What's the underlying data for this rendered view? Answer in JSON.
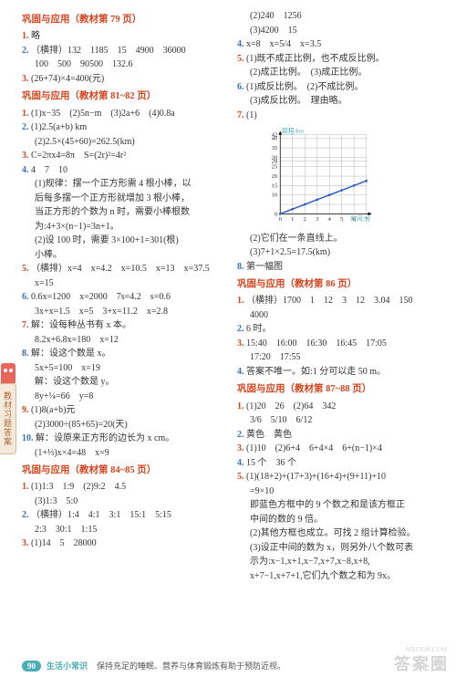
{
  "side_tab": "教材习题答案",
  "footer": {
    "page": "90",
    "label": "生活小常识",
    "note": "保持充足的睡眠、营养与体育锻炼有助于预防近视。"
  },
  "watermark": {
    "small": "答案圈",
    "sub": "MXUE88.COM"
  },
  "left": {
    "s1_title": "巩固与应用（教材第 79 页）",
    "s1_l1": "略",
    "s1_l2": "（横排）132　1185　15　4900　36000",
    "s1_l2b": "100　500　90500　132.6",
    "s1_l3": "(26+74)×4=400(元)",
    "s2_title": "巩固与应用（教材第 81~82 页）",
    "s2_l1": "(1)x−35　(2)5n−m　(3)2a+6　(4)0.8a",
    "s2_l2": "(1)2.5(a+b) km",
    "s2_l2b": "(2)2.5×(45+60)=262.5(km)",
    "s2_l3": "C=2πx4=8π　S=(2r)²=4r²",
    "s2_l4": "4　7　10",
    "s2_l4b1": "(1)规律：摆一个正方形需 4 根小棒，以",
    "s2_l4b2": "后每多摆一个正方形就增加 3 根小棒，",
    "s2_l4b3": "当正方形的个数为 n 时，需要小棒根数",
    "s2_l4b4": "为:4+3×(n−1)=3n+1。",
    "s2_l4b5": "(2)设 100 时，需要 3×100+1=301(根)",
    "s2_l4b6": "小棒。",
    "s2_l5": "（横排）x=4　x=4.2　x=10.5　x=13　x=37.5",
    "s2_l5b": "x=15",
    "s2_l6": "0.6x=1200　x=2000　7s=4.2　s=0.6",
    "s2_l6b": "3x+x=1.5　x=5　3+x=11.2　x=2.8",
    "s2_l7": "解：设每种丛书有 x 本。",
    "s2_l7b": "8.2x+6.8x=180　x=12",
    "s2_l8": "解：设这个数是 x。",
    "s2_l8b": "5x+5=100　x=19",
    "s2_l8c": "解：设这个数是 y。",
    "s2_l8d": "8y+¼=66　y=8",
    "s2_l9": "(1)8(a+b)元",
    "s2_l9b": "(2)3000÷(85+65)=20(天)",
    "s2_l10": "解：设原来正方形的边长为 x cm。",
    "s2_l10b": "(1+⅓)x×4=48　x=9",
    "s3_title": "巩固与应用（教材第 84~85 页）",
    "s3_l1": "(1)1:3　1:9　(2)9:2　4.5",
    "s3_l1b": "(3)1:3　5:0",
    "s3_l2": "（横排）1:4　4:1　3:1　15:1　5:15",
    "s3_l2b": "2:3　30:1　1:15",
    "s3_l3": "(1)14　5　28000"
  },
  "right": {
    "r_l1": "(2)240　1256",
    "r_l2": "(3)4200　15",
    "r_l4": "x=8　x=5/4　x=3.5",
    "r_l5": "(1)既不成正比例，也不成反比例。",
    "r_l5b": "(2)成正比例。　(3)成正比例。",
    "r_l6": "(1)成反比例。　(2)不成比例。",
    "r_l6b": "(3)成反比例。　理由略。",
    "r_l7a": "(1)",
    "r_l7b": "(2)它们在一条直线上。",
    "r_l7c": "(3)7+1×2.5=17.5(km)",
    "r_l8": "第一幅图",
    "s4_title": "巩固与应用（教材第 86 页）",
    "s4_l1": "（横排）1700　1　12　3　12　3.04　150",
    "s4_l1b": "4000",
    "s4_l2": "6 时。",
    "s4_l3": "15:40　16:00　16:30　16:45　17:05",
    "s4_l3b": "17:20　17:55",
    "s4_l4": "答案不唯一。如:1 分可以走 50 m。",
    "s5_title": "巩固与应用（教材第 87~88 页）",
    "s5_l1": "(1)20　26　(2)64　342",
    "s5_l2": "3/6　5/10　6/12",
    "s5_l3": "黄色　黄色",
    "s5_l4": "(1)10　(2)6+4　6+4×4　6+(n−1)×4",
    "s5_l5": "15 个　36 个",
    "s5_l6a": "(1)(18+2)+(17+3)+(16+4)+(9+11)+10",
    "s5_l6b": "=9×10",
    "s5_l6c": "即蓝色方框中的 9 个数之和是该方框正",
    "s5_l6d": "中间的数的 9 倍。",
    "s5_l6e": "(2)其他方框也成立。可找 2 组计算检验。",
    "s5_l6f": "(3)设正中间的数为 x，则另外八个数可表",
    "s5_l6g": "示为:x−1,x+1,x−7,x+7,x−8,x+8,",
    "s5_l6h": "x+7−1,x+7+1,它们九个数之和为 9x。"
  },
  "chart": {
    "ylabel": "路程/km",
    "xlabel": "时间/分",
    "xticks": [
      0,
      1,
      2,
      3,
      4,
      5,
      6,
      7
    ],
    "yticks": [
      10,
      15,
      20,
      25,
      28,
      30,
      35,
      40,
      42
    ],
    "line_points": [
      [
        0,
        0
      ],
      [
        1,
        2.5
      ],
      [
        2,
        5
      ],
      [
        3,
        7.5
      ],
      [
        4,
        10
      ],
      [
        5,
        12.5
      ],
      [
        6,
        15
      ],
      [
        7,
        17.5
      ]
    ],
    "line_scaled": [
      [
        20,
        100
      ],
      [
        34,
        88
      ],
      [
        48,
        76
      ],
      [
        62,
        64
      ],
      [
        76,
        52
      ],
      [
        90,
        40
      ],
      [
        104,
        28
      ],
      [
        118,
        16
      ]
    ],
    "colors": {
      "grid": "#a0a0a0",
      "line": "#2a5cc4",
      "text": "#333333",
      "label": "#48adb5"
    },
    "fontsize": 7
  }
}
